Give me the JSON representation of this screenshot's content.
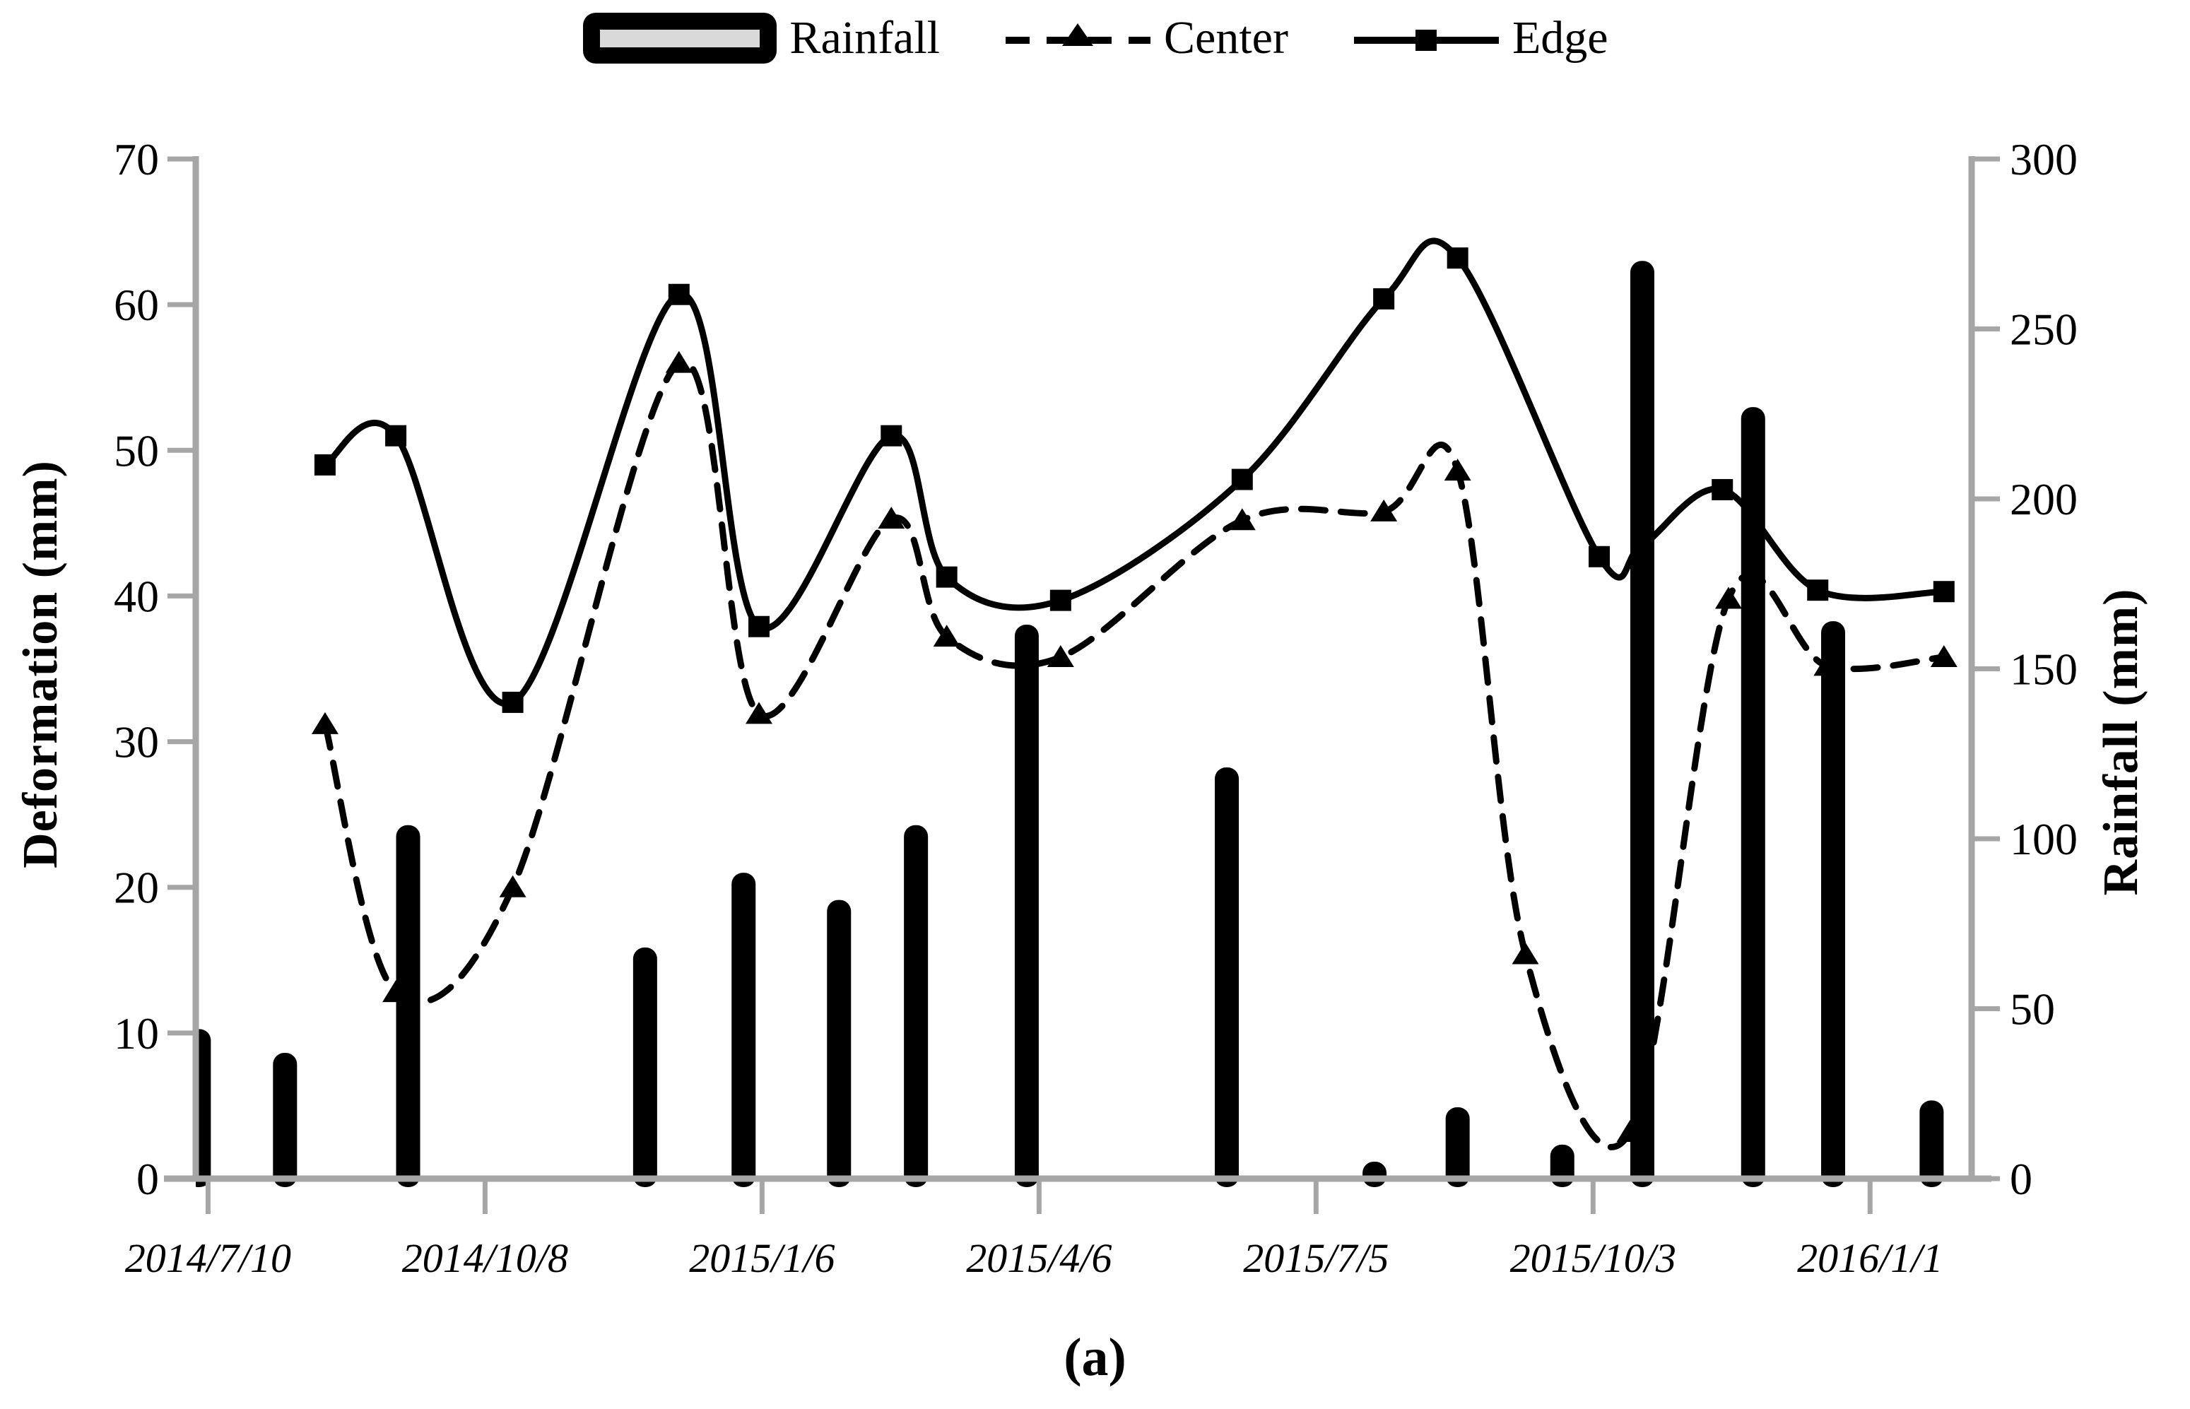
{
  "figure": {
    "caption": "(a)"
  },
  "legend": [
    {
      "label": "Rainfall",
      "key": "bar-swatch"
    },
    {
      "label": "Center",
      "key": "dashed-line-triangle-marker"
    },
    {
      "label": "Edge",
      "key": "solid-line-square-marker"
    }
  ],
  "axes": {
    "left": {
      "title": "Deformation (mm)"
    },
    "right": {
      "title": "Rainfall (mm)"
    }
  },
  "colors": {
    "series": "#000000",
    "axis_gray": "#a6a6a6",
    "legend_bar_inner": "#d9d9d9",
    "background": "#ffffff"
  },
  "chart_data": {
    "type": "combo",
    "title": "",
    "legend_position": "top",
    "grid": false,
    "x_range": [
      "2014-07-06",
      "2016-02-03"
    ],
    "x_ticks": [
      {
        "label": "2014/7/10",
        "date": "2014-07-10"
      },
      {
        "label": "2014/10/8",
        "date": "2014-10-08"
      },
      {
        "label": "2015/1/6",
        "date": "2015-01-06"
      },
      {
        "label": "2015/4/6",
        "date": "2015-04-06"
      },
      {
        "label": "2015/7/5",
        "date": "2015-07-05"
      },
      {
        "label": "2015/10/3",
        "date": "2015-10-03"
      },
      {
        "label": "2016/1/1",
        "date": "2016-01-01"
      }
    ],
    "left_axis": {
      "label": "Deformation (mm)",
      "range": [
        0,
        70
      ],
      "step": 10
    },
    "right_axis": {
      "label": "Rainfall (mm)",
      "range": [
        0,
        300
      ],
      "step": 50
    },
    "series": [
      {
        "name": "Rainfall",
        "type": "bar",
        "axis": "right",
        "color": "#000000",
        "points": [
          [
            "2014-07-07",
            44
          ],
          [
            "2014-08-04",
            37
          ],
          [
            "2014-09-13",
            104
          ],
          [
            "2014-11-29",
            68
          ],
          [
            "2014-12-31",
            90
          ],
          [
            "2015-01-31",
            82
          ],
          [
            "2015-02-25",
            104
          ],
          [
            "2015-04-02",
            163
          ],
          [
            "2015-06-06",
            121
          ],
          [
            "2015-07-24",
            5
          ],
          [
            "2015-08-20",
            21
          ],
          [
            "2015-09-23",
            10
          ],
          [
            "2015-10-19",
            270
          ],
          [
            "2015-11-24",
            227
          ],
          [
            "2015-12-20",
            164
          ],
          [
            "2016-01-21",
            23
          ]
        ]
      },
      {
        "name": "Center",
        "type": "line",
        "style": "dashed",
        "marker": "triangle",
        "axis": "left",
        "color": "#000000",
        "points": [
          [
            "2014-08-17",
            31.2
          ],
          [
            "2014-09-09",
            12.8
          ],
          [
            "2014-10-17",
            20.0
          ],
          [
            "2014-12-10",
            56.0
          ],
          [
            "2015-01-05",
            31.9
          ],
          [
            "2015-02-17",
            45.3
          ],
          [
            "2015-03-07",
            37.2
          ],
          [
            "2015-04-13",
            35.8
          ],
          [
            "2015-06-11",
            45.2
          ],
          [
            "2015-07-27",
            45.8
          ],
          [
            "2015-08-20",
            48.6
          ],
          [
            "2015-09-11",
            15.4
          ],
          [
            "2015-10-15",
            3.2
          ],
          [
            "2015-11-16",
            39.8
          ],
          [
            "2015-12-18",
            35.2
          ],
          [
            "2016-01-25",
            35.8
          ]
        ]
      },
      {
        "name": "Edge",
        "type": "line",
        "style": "solid",
        "marker": "square",
        "axis": "left",
        "color": "#000000",
        "points": [
          [
            "2014-08-17",
            49.0
          ],
          [
            "2014-09-09",
            51.0
          ],
          [
            "2014-10-17",
            32.7
          ],
          [
            "2014-12-10",
            60.7
          ],
          [
            "2015-01-05",
            37.9
          ],
          [
            "2015-02-17",
            51.0
          ],
          [
            "2015-03-07",
            41.3
          ],
          [
            "2015-04-13",
            39.7
          ],
          [
            "2015-06-11",
            48.0
          ],
          [
            "2015-07-27",
            60.4
          ],
          [
            "2015-08-20",
            63.2
          ],
          [
            "2015-10-05",
            42.7
          ],
          [
            "2015-10-19",
            43.5
          ],
          [
            "2015-11-14",
            47.3
          ],
          [
            "2015-12-15",
            40.4
          ],
          [
            "2016-01-25",
            40.3
          ]
        ]
      }
    ]
  }
}
